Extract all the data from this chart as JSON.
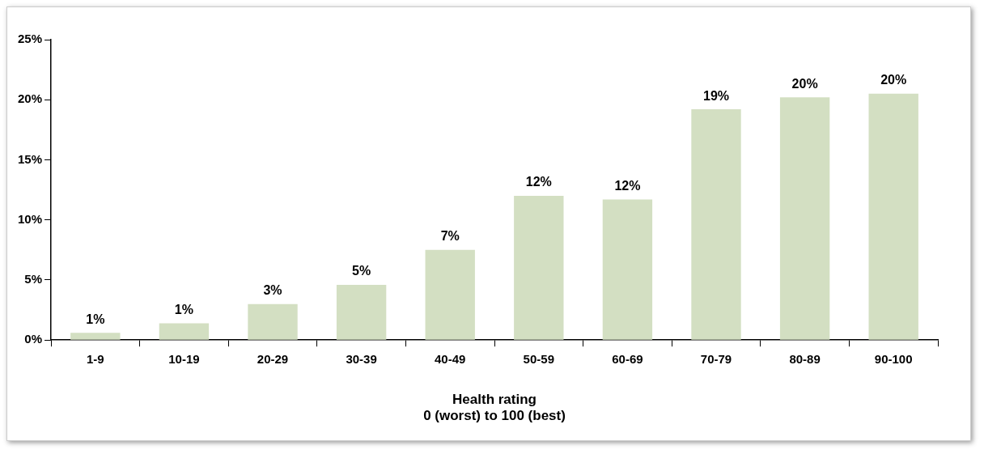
{
  "chart_data": {
    "type": "bar",
    "xlabel": "Health rating\n0 (worst) to 100 (best)",
    "categories": [
      "1-9",
      "10-19",
      "20-29",
      "30-39",
      "40-49",
      "50-59",
      "60-69",
      "70-79",
      "80-89",
      "90-100"
    ],
    "values": [
      0.6,
      1.4,
      3.0,
      4.6,
      7.5,
      12.0,
      11.7,
      19.2,
      20.2,
      20.5
    ],
    "value_labels": [
      "1%",
      "1%",
      "3%",
      "5%",
      "7%",
      "12%",
      "12%",
      "19%",
      "20%",
      "20%"
    ],
    "color": "#d3dfc2",
    "ylim": [
      0,
      25
    ],
    "yticks": [
      {
        "value": 0,
        "label": "0%"
      },
      {
        "value": 5,
        "label": "5%"
      },
      {
        "value": 10,
        "label": "10%"
      },
      {
        "value": 15,
        "label": "15%"
      },
      {
        "value": 20,
        "label": "20%"
      },
      {
        "value": 25,
        "label": "25%"
      }
    ],
    "grid": false,
    "legend": false
  }
}
